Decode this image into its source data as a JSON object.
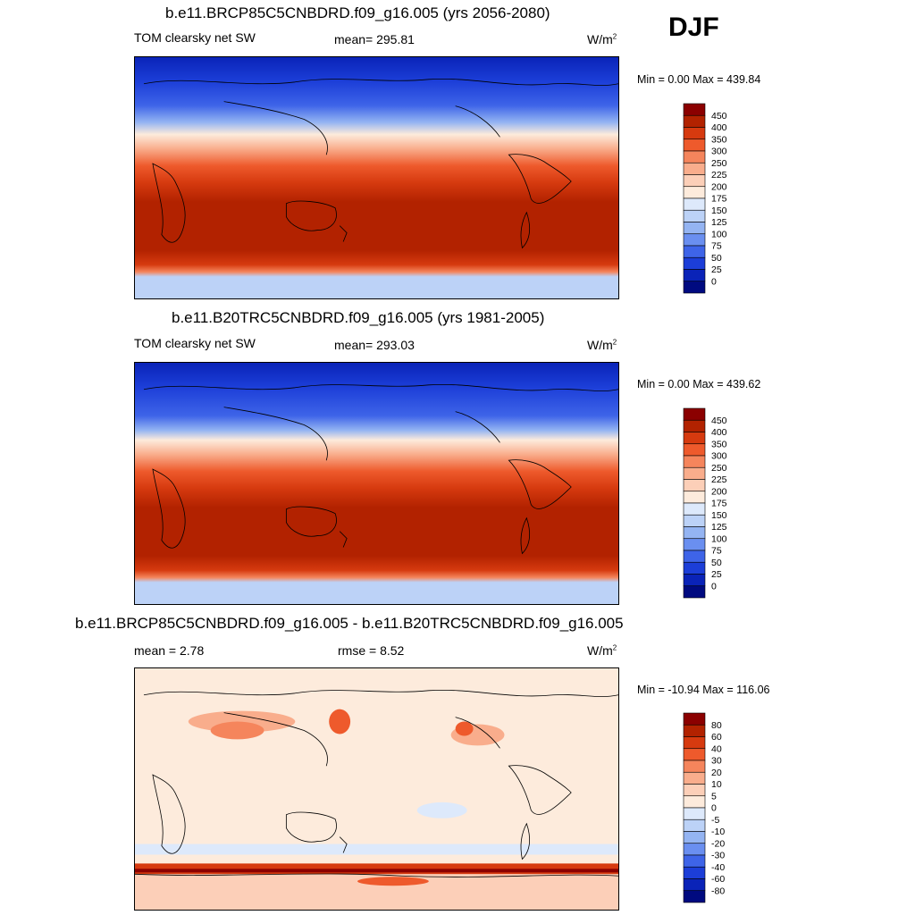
{
  "season": "DJF",
  "panels": [
    {
      "title": "b.e11.BRCP85C5CNBDRD.f09_g16.005 (yrs 2056-2080)",
      "left_label": "TOM clearsky net SW",
      "center_label": "mean= 295.81",
      "units_base": "W/m",
      "units_sup": "2",
      "minmax": "Min =   0.00 Max = 439.84",
      "colorbar_labels": [
        "450",
        "400",
        "350",
        "300",
        "250",
        "225",
        "200",
        "175",
        "150",
        "125",
        "100",
        "75",
        "50",
        "25",
        "0"
      ],
      "colorbar_colors": [
        "#8b0000",
        "#b22200",
        "#d63a0f",
        "#ee5a2c",
        "#f5855c",
        "#f9ad8c",
        "#fccfb8",
        "#fdebdc",
        "#dde9fb",
        "#bcd2f7",
        "#94b4f2",
        "#6a8ff0",
        "#3e64e8",
        "#1c3ed8",
        "#0a23b8",
        "#000a80"
      ],
      "mean": 295.81,
      "min": 0.0,
      "max": 439.84
    },
    {
      "title": "b.e11.B20TRC5CNBDRD.f09_g16.005 (yrs 1981-2005)",
      "left_label": "TOM clearsky net SW",
      "center_label": "mean= 293.03",
      "units_base": "W/m",
      "units_sup": "2",
      "minmax": "Min =   0.00 Max = 439.62",
      "colorbar_labels": [
        "450",
        "400",
        "350",
        "300",
        "250",
        "225",
        "200",
        "175",
        "150",
        "125",
        "100",
        "75",
        "50",
        "25",
        "0"
      ],
      "colorbar_colors": [
        "#8b0000",
        "#b22200",
        "#d63a0f",
        "#ee5a2c",
        "#f5855c",
        "#f9ad8c",
        "#fccfb8",
        "#fdebdc",
        "#dde9fb",
        "#bcd2f7",
        "#94b4f2",
        "#6a8ff0",
        "#3e64e8",
        "#1c3ed8",
        "#0a23b8",
        "#000a80"
      ],
      "mean": 293.03,
      "min": 0.0,
      "max": 439.62
    },
    {
      "title": "b.e11.BRCP85C5CNBDRD.f09_g16.005 - b.e11.B20TRC5CNBDRD.f09_g16.005",
      "left_label": "mean =   2.78",
      "center_label": "rmse =   8.52",
      "units_base": "W/m",
      "units_sup": "2",
      "minmax": "Min = -10.94 Max = 116.06",
      "colorbar_labels": [
        "80",
        "60",
        "40",
        "30",
        "20",
        "10",
        "5",
        "0",
        "-5",
        "-10",
        "-20",
        "-30",
        "-40",
        "-60",
        "-80"
      ],
      "colorbar_colors": [
        "#8b0000",
        "#b22200",
        "#d63a0f",
        "#ee5a2c",
        "#f5855c",
        "#f9ad8c",
        "#fccfb8",
        "#fdebdc",
        "#dde9fb",
        "#bcd2f7",
        "#94b4f2",
        "#6a8ff0",
        "#3e64e8",
        "#1c3ed8",
        "#0a23b8",
        "#000a80"
      ],
      "mean": 2.78,
      "rmse": 8.52,
      "min": -10.94,
      "max": 116.06
    }
  ],
  "chart_data": [
    {
      "type": "heatmap",
      "title": "b.e11.BRCP85C5CNBDRD.f09_g16.005 (yrs 2056-2080)",
      "variable": "TOM clearsky net SW",
      "units": "W/m2",
      "season": "DJF",
      "mean": 295.81,
      "min": 0.0,
      "max": 439.84,
      "levels": [
        0,
        25,
        50,
        75,
        100,
        125,
        150,
        175,
        200,
        225,
        250,
        300,
        350,
        400,
        450
      ]
    },
    {
      "type": "heatmap",
      "title": "b.e11.B20TRC5CNBDRD.f09_g16.005 (yrs 1981-2005)",
      "variable": "TOM clearsky net SW",
      "units": "W/m2",
      "season": "DJF",
      "mean": 293.03,
      "min": 0.0,
      "max": 439.62,
      "levels": [
        0,
        25,
        50,
        75,
        100,
        125,
        150,
        175,
        200,
        225,
        250,
        300,
        350,
        400,
        450
      ]
    },
    {
      "type": "heatmap",
      "title": "b.e11.BRCP85C5CNBDRD.f09_g16.005 - b.e11.B20TRC5CNBDRD.f09_g16.005",
      "units": "W/m2",
      "season": "DJF",
      "mean": 2.78,
      "rmse": 8.52,
      "min": -10.94,
      "max": 116.06,
      "levels": [
        -80,
        -60,
        -40,
        -30,
        -20,
        -10,
        -5,
        0,
        5,
        10,
        20,
        30,
        40,
        60,
        80
      ]
    }
  ]
}
